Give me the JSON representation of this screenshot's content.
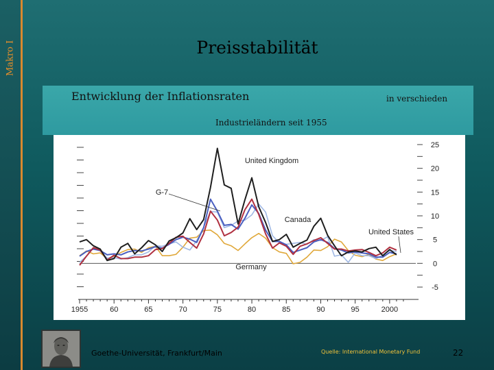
{
  "sidebar": {
    "label": "Makro I"
  },
  "slide": {
    "title": "Preisstabilität",
    "subtitle_left": "Entwicklung der Inflationsraten",
    "subtitle_right": "in verschieden",
    "subtitle_line2": "Industrieländern seit 1955",
    "footer": "Goethe-Universität, Frankfurt/Main",
    "source": "Quelle: International Monetary Fund",
    "page_number": "22"
  },
  "colors": {
    "uk": "#1e1e1e",
    "g7": "#4a5fc0",
    "us": "#b03040",
    "canada": "#9fb8e4",
    "germany": "#e0a83a"
  },
  "chart_data": {
    "type": "line",
    "title": "",
    "xlabel": "",
    "ylabel": "",
    "xlim": [
      1955,
      2003
    ],
    "ylim": [
      -5,
      25
    ],
    "x_ticks": [
      "1955",
      "60",
      "65",
      "70",
      "75",
      "80",
      "85",
      "90",
      "95",
      "2000"
    ],
    "y_ticks": [
      "25",
      "20",
      "15",
      "10",
      "5",
      "0",
      "-5"
    ],
    "x": [
      1955,
      1956,
      1957,
      1958,
      1959,
      1960,
      1961,
      1962,
      1963,
      1964,
      1965,
      1966,
      1967,
      1968,
      1969,
      1970,
      1971,
      1972,
      1973,
      1974,
      1975,
      1976,
      1977,
      1978,
      1979,
      1980,
      1981,
      1982,
      1983,
      1984,
      1985,
      1986,
      1987,
      1988,
      1989,
      1990,
      1991,
      1992,
      1993,
      1994,
      1995,
      1996,
      1997,
      1998,
      1999,
      2000,
      2001
    ],
    "series": [
      {
        "name": "United Kingdom",
        "label": "United Kingdom",
        "color_key": "uk",
        "values": [
          4.5,
          5,
          3.7,
          3,
          0.6,
          1,
          3.4,
          4.2,
          2,
          3.3,
          4.8,
          3.9,
          2.5,
          4.7,
          5.4,
          6.4,
          9.4,
          7.1,
          9.2,
          16,
          24.2,
          16.5,
          15.8,
          8.3,
          13.4,
          18,
          11.9,
          8.6,
          4.6,
          5,
          6.1,
          3.4,
          4.2,
          4.9,
          7.8,
          9.5,
          5.9,
          3.7,
          1.6,
          2.4,
          2.6,
          2.4,
          3.1,
          3.4,
          1.6,
          2.9,
          1.8
        ]
      },
      {
        "name": "G-7",
        "label": "G-7",
        "color_key": "g7",
        "values": [
          1.5,
          2.5,
          3,
          2.7,
          1.8,
          2,
          1.8,
          2.4,
          2.7,
          2.6,
          3,
          3.5,
          3.2,
          4,
          5,
          5.5,
          5.1,
          4.4,
          7.5,
          13.5,
          11,
          8,
          8.2,
          7.2,
          9.5,
          12.3,
          10.5,
          7,
          4.6,
          4.6,
          3.9,
          2.3,
          2.8,
          3.3,
          4.5,
          5,
          4.4,
          3.1,
          2.8,
          2.2,
          2.4,
          2.2,
          2,
          1.3,
          1.3,
          2.3,
          2
        ]
      },
      {
        "name": "United States",
        "label": "United States",
        "color_key": "us",
        "values": [
          -0.4,
          1.5,
          3.3,
          2.8,
          0.7,
          1.7,
          1,
          1,
          1.3,
          1.3,
          1.6,
          2.9,
          3.1,
          4.2,
          5.5,
          5.7,
          4.4,
          3.2,
          6.2,
          11,
          9.1,
          5.8,
          6.5,
          7.6,
          11.3,
          13.5,
          10.3,
          6.2,
          3.2,
          4.3,
          3.6,
          1.9,
          3.6,
          4.1,
          4.8,
          5.4,
          4.2,
          3,
          3,
          2.6,
          2.8,
          2.9,
          2.3,
          1.6,
          2.2,
          3.4,
          2.8
        ]
      },
      {
        "name": "Canada",
        "label": "Canada",
        "color_key": "canada",
        "values": [
          0.2,
          1.5,
          3.2,
          2.6,
          1.1,
          1.2,
          0.9,
          1.2,
          1.8,
          1.8,
          2.4,
          3.7,
          3.6,
          4.1,
          4.5,
          3.4,
          2.8,
          4.8,
          7.6,
          10.9,
          10.8,
          7.5,
          8,
          8.9,
          9.1,
          10.2,
          12.5,
          10.8,
          5.8,
          4.3,
          4,
          4.2,
          4.4,
          4,
          5,
          4.8,
          5.6,
          1.5,
          1.8,
          0.2,
          2.2,
          1.6,
          1.6,
          1,
          1.7,
          2.7,
          2.5
        ]
      },
      {
        "name": "Germany",
        "label": "Germany",
        "color_key": "germany",
        "values": [
          1.6,
          2.6,
          2,
          2.2,
          1,
          1.5,
          2.3,
          2.9,
          3,
          2.3,
          3.3,
          3.6,
          1.6,
          1.6,
          1.9,
          3.4,
          5.3,
          5.5,
          6.9,
          7,
          6,
          4.2,
          3.7,
          2.7,
          4.1,
          5.4,
          6.3,
          5.3,
          3.3,
          2.4,
          2.1,
          -0.1,
          0.2,
          1.3,
          2.8,
          2.7,
          3.5,
          5.1,
          4.5,
          2.7,
          1.7,
          1.4,
          1.9,
          0.9,
          0.6,
          1.4,
          2
        ]
      }
    ],
    "annotations": [
      {
        "text": "United Kingdom",
        "x": 1981.5,
        "y": 22.2,
        "anchor": "middle"
      },
      {
        "text": "G-7",
        "x": 1966.2,
        "y": 16.3,
        "anchor": "middle"
      },
      {
        "text": "Canada",
        "x": 1779.0,
        "y": 0,
        "anchor": "none",
        "hidden": true
      },
      {
        "text": "United States",
        "x": 1994.8,
        "y": 8.3,
        "anchor": "middle"
      },
      {
        "text": "Germany",
        "x": 1977.5,
        "y": 1.6,
        "anchor": "middle"
      }
    ],
    "canada_label": "Canada",
    "grid": false,
    "legend": "none"
  }
}
